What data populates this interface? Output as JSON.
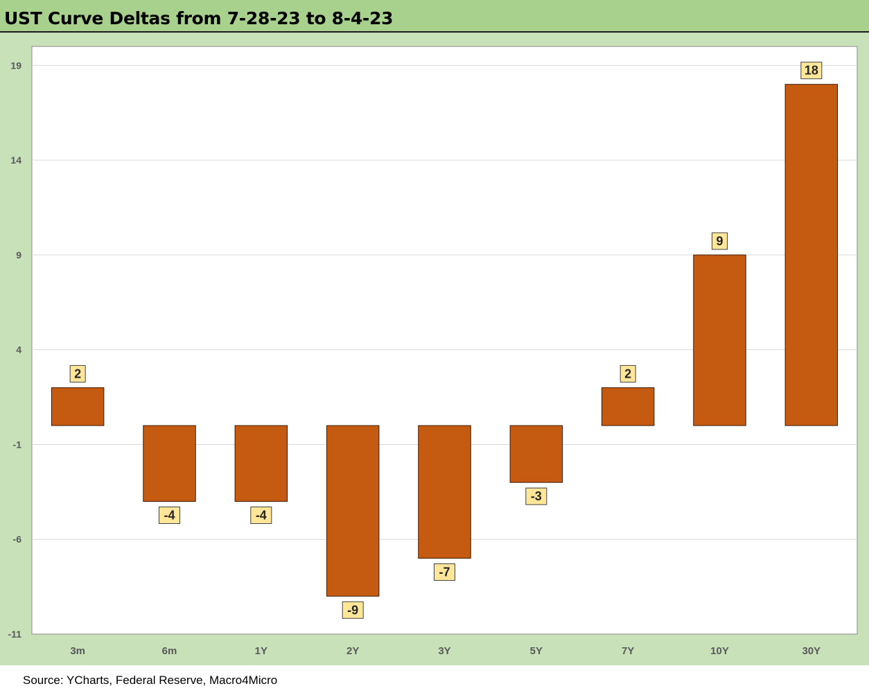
{
  "title": "UST Curve Deltas from 7-28-23 to 8-4-23",
  "source": "Source: YCharts, Federal Reserve, Macro4Micro",
  "colors": {
    "bar": "#c55a11",
    "label_box": "#ffe699",
    "title_bg": "#a9d18e",
    "panel_bg": "#c9e1b9"
  },
  "chart_data": {
    "type": "bar",
    "categories": [
      "3m",
      "6m",
      "1Y",
      "2Y",
      "3Y",
      "5Y",
      "7Y",
      "10Y",
      "30Y"
    ],
    "values": [
      2,
      -4,
      -4,
      -9,
      -7,
      -3,
      2,
      9,
      18
    ],
    "data_labels": [
      "2",
      "-4",
      "-4",
      "-9",
      "-7",
      "-3",
      "2",
      "9",
      "18"
    ],
    "title": "UST Curve Deltas from 7-28-23 to 8-4-23",
    "xlabel": "",
    "ylabel": "",
    "ylim": [
      -11,
      20
    ],
    "yticks": [
      19,
      14,
      9,
      4,
      -1,
      -6,
      -11
    ],
    "grid": true,
    "legend": "none"
  }
}
